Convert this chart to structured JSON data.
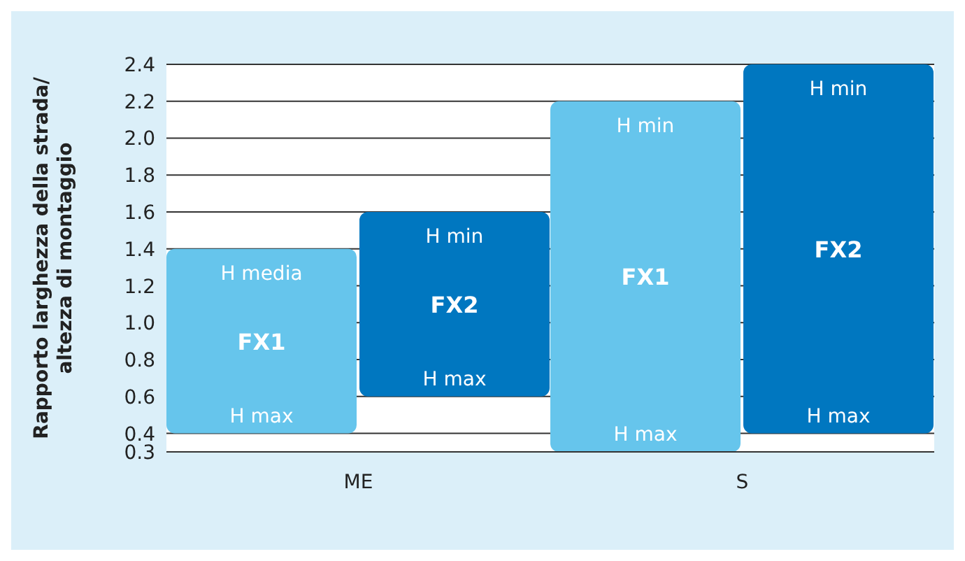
{
  "chart_data": {
    "type": "bar",
    "ylabel": "Rapporto larghezza della strada/ altezza di montaggio",
    "categories": [
      "ME",
      "S"
    ],
    "series": [
      {
        "name": "FX1",
        "color": "#66c5ec",
        "base": [
          0.4,
          0.3
        ],
        "values": [
          1.0,
          1.9
        ]
      },
      {
        "name": "FX2",
        "color": "#0077c0",
        "base": [
          0.6,
          0.4
        ],
        "values": [
          1.0,
          2.0
        ]
      }
    ],
    "ylim": [
      0.3,
      2.4
    ],
    "yticks": [
      0.3,
      0.4,
      0.6,
      0.8,
      {
        "value": 1,
        "label": "1.0"
      },
      1.2,
      1.4,
      1.6,
      1.8,
      {
        "value": 2,
        "label": "2.0"
      },
      2.2,
      2.4
    ],
    "grid": "y",
    "annotations": [
      "H media",
      "H max",
      "H min",
      "H max",
      "H min",
      "H max",
      "H min",
      "H max"
    ]
  }
}
